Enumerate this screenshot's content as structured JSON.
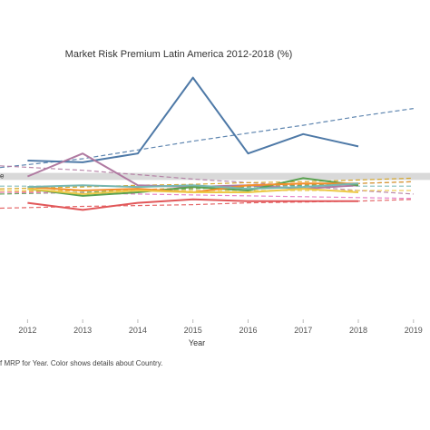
{
  "chart_data": {
    "type": "line",
    "title": "Market Risk Premium Latin America 2012-2018 (%)",
    "xlabel": "Year",
    "ylabel": "",
    "x": [
      "2012",
      "2013",
      "2014",
      "2015",
      "2016",
      "2017",
      "2018"
    ],
    "x_ticks": [
      "2012",
      "2013",
      "2014",
      "2015",
      "2016",
      "2017",
      "2018",
      "2019"
    ],
    "xlim": [
      2011.5,
      2019.3
    ],
    "ylim": [
      -2.2,
      12.3
    ],
    "grid": false,
    "reference_band": {
      "y_from": 5.7,
      "y_to": 6.1,
      "label": "e",
      "color": "#d9d9d9"
    },
    "caption": "f MRP for Year.  Color shows details about Country.",
    "series": [
      {
        "color": "#4e79a7",
        "values": [
          6.8,
          6.7,
          7.2,
          11.5,
          7.2,
          8.3,
          7.6
        ],
        "trend": [
          6.4,
          6.9,
          7.4,
          7.9,
          8.35,
          8.8,
          9.3,
          9.75
        ]
      },
      {
        "color": "#b07aa1",
        "values": [
          5.9,
          7.2,
          5.4,
          5.3,
          5.4,
          5.2,
          5.4
        ],
        "trend": [
          6.5,
          6.25,
          6.0,
          5.75,
          5.55,
          5.35,
          5.1,
          4.9
        ]
      },
      {
        "color": "#e15759",
        "values": [
          4.4,
          4.0,
          4.4,
          4.6,
          4.5,
          4.5,
          4.5
        ],
        "trend": [
          4.1,
          4.2,
          4.25,
          4.3,
          4.4,
          4.45,
          4.5,
          4.6
        ]
      },
      {
        "color": "#59a14f",
        "values": [
          5.2,
          4.8,
          5.0,
          5.3,
          5.1,
          5.8,
          5.4
        ],
        "trend": [
          4.9,
          5.0,
          5.1,
          5.2,
          5.3,
          5.4,
          5.5,
          5.6
        ]
      },
      {
        "color": "#f28e2b",
        "values": [
          5.3,
          5.1,
          5.2,
          5.0,
          5.4,
          5.5,
          5.5
        ],
        "trend": [
          5.0,
          5.1,
          5.15,
          5.25,
          5.35,
          5.45,
          5.5,
          5.6
        ]
      },
      {
        "color": "#edc948",
        "values": [
          5.2,
          4.9,
          5.1,
          5.0,
          5.0,
          5.2,
          5.0
        ],
        "trend": [
          5.1,
          5.1,
          5.1,
          5.1,
          5.1,
          5.1,
          5.1,
          5.1
        ]
      },
      {
        "color": "#76b7b2",
        "values": [
          5.3,
          5.4,
          5.3,
          5.4,
          5.2,
          5.3,
          5.5
        ],
        "trend": [
          5.35,
          5.35,
          5.35,
          5.35,
          5.35,
          5.35,
          5.35,
          5.35
        ]
      },
      {
        "color": "#d4a017",
        "values": [
          null,
          null,
          null,
          null,
          null,
          null,
          null
        ],
        "trend": [
          5.2,
          5.3,
          5.4,
          5.45,
          5.55,
          5.6,
          5.7,
          5.8
        ]
      },
      {
        "color": "#e377c2",
        "values": [
          null,
          null,
          null,
          null,
          null,
          null,
          null
        ],
        "trend": [
          5.0,
          4.95,
          4.9,
          4.85,
          4.8,
          4.75,
          4.7,
          4.65
        ]
      }
    ]
  }
}
